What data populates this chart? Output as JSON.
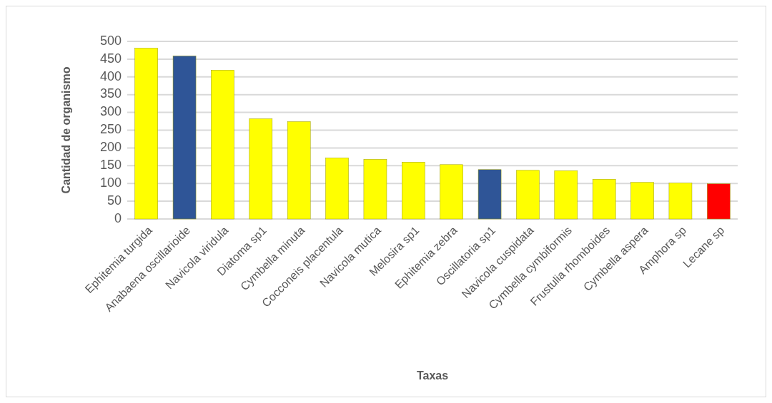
{
  "chart_data": {
    "type": "bar",
    "xlabel": "Taxas",
    "ylabel": "Cantidad de organismo",
    "categories": [
      "Ephitemia turgida",
      "Anabaena oscillarioide",
      "Navicola viridula",
      "Diatoma sp1",
      "Cymbella minuta",
      "Cocconeis placentula",
      "Navicola mutica",
      "Melosira sp1",
      "Ephitemia zebra",
      "Oscillatoria sp1",
      "Navicola cuspidata",
      "Cymbella cymbiformis",
      "Frustulia rhomboides",
      "Cymbella aspera",
      "Amphora sp",
      "Lecane sp"
    ],
    "values": [
      481,
      459,
      419,
      282,
      274,
      172,
      168,
      160,
      153,
      139,
      137,
      136,
      112,
      103,
      101,
      99
    ],
    "colors": [
      "#ffff00",
      "#2f5597",
      "#ffff00",
      "#ffff00",
      "#ffff00",
      "#ffff00",
      "#ffff00",
      "#ffff00",
      "#ffff00",
      "#2f5597",
      "#ffff00",
      "#ffff00",
      "#ffff00",
      "#ffff00",
      "#ffff00",
      "#ff0000"
    ],
    "ylim": [
      0,
      500
    ],
    "yticks": [
      0,
      50,
      100,
      150,
      200,
      250,
      300,
      350,
      400,
      450,
      500
    ],
    "grid": "y"
  }
}
